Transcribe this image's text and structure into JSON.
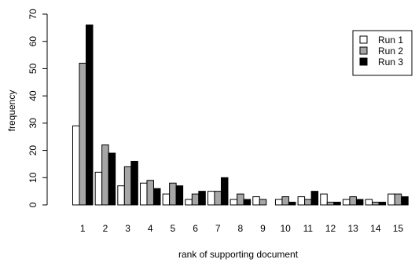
{
  "chart_data": {
    "type": "bar",
    "title": "",
    "xlabel": "rank of supporting document",
    "ylabel": "frequency",
    "categories": [
      "1",
      "2",
      "3",
      "4",
      "5",
      "6",
      "7",
      "8",
      "9",
      "10",
      "11",
      "12",
      "13",
      "14",
      "15"
    ],
    "series": [
      {
        "name": "Run 1",
        "color": "#ffffff",
        "values": [
          29,
          12,
          7,
          8,
          4,
          2,
          5,
          2,
          3,
          2,
          3,
          4,
          2,
          2,
          4
        ]
      },
      {
        "name": "Run 2",
        "color": "#a6a6a6",
        "values": [
          52,
          22,
          14,
          9,
          8,
          4,
          5,
          4,
          2,
          3,
          2,
          1,
          3,
          1,
          4
        ]
      },
      {
        "name": "Run 3",
        "color": "#000000",
        "values": [
          66,
          19,
          16,
          6,
          7,
          5,
          10,
          2,
          0,
          1,
          5,
          1,
          2,
          1,
          3
        ]
      }
    ],
    "yticks": [
      "0",
      "10",
      "20",
      "30",
      "40",
      "50",
      "60",
      "70"
    ],
    "ylim": [
      0,
      70
    ],
    "grid": false,
    "legend_position": "top-right"
  }
}
